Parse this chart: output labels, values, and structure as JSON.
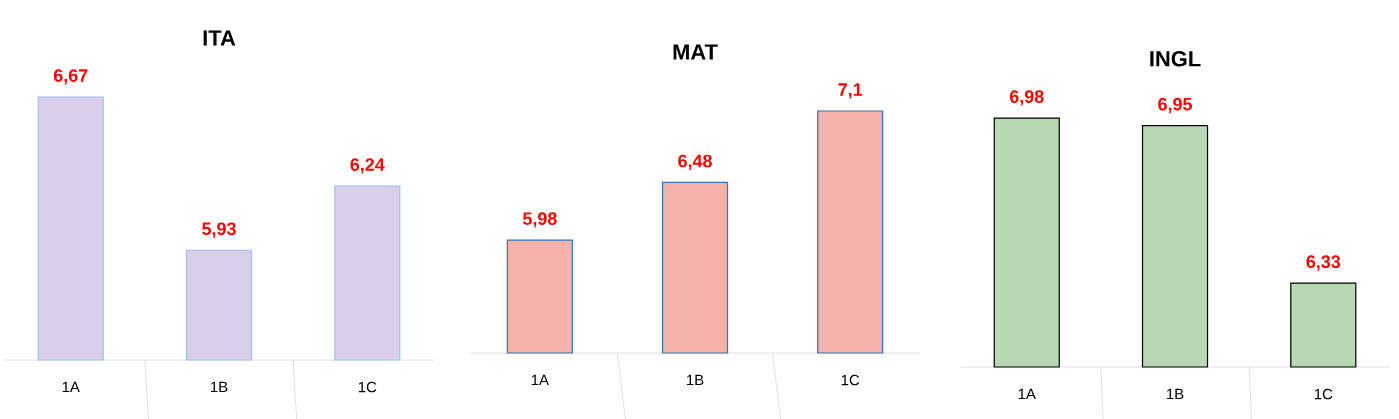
{
  "chart_data": [
    {
      "type": "bar",
      "title": "ITA",
      "categories": [
        "1A",
        "1B",
        "1C"
      ],
      "values": [
        6.67,
        5.93,
        6.24
      ],
      "value_labels": [
        "6,67",
        "5,93",
        "6,24"
      ],
      "color": "#d9cfea",
      "ylim": [
        5.4,
        6.67
      ]
    },
    {
      "type": "bar",
      "title": "MAT",
      "categories": [
        "1A",
        "1B",
        "1C"
      ],
      "values": [
        5.98,
        6.48,
        7.1
      ],
      "value_labels": [
        "5,98",
        "6,48",
        "7,1"
      ],
      "color": "#f4b2aa",
      "ylim": [
        5.0,
        7.1
      ]
    },
    {
      "type": "bar",
      "title": "INGL",
      "categories": [
        "1A",
        "1B",
        "1C"
      ],
      "values": [
        6.98,
        6.95,
        6.33
      ],
      "value_labels": [
        "6,98",
        "6,95",
        "6,33"
      ],
      "color": "#b8d8b3",
      "ylim": [
        6.0,
        6.98
      ]
    }
  ]
}
